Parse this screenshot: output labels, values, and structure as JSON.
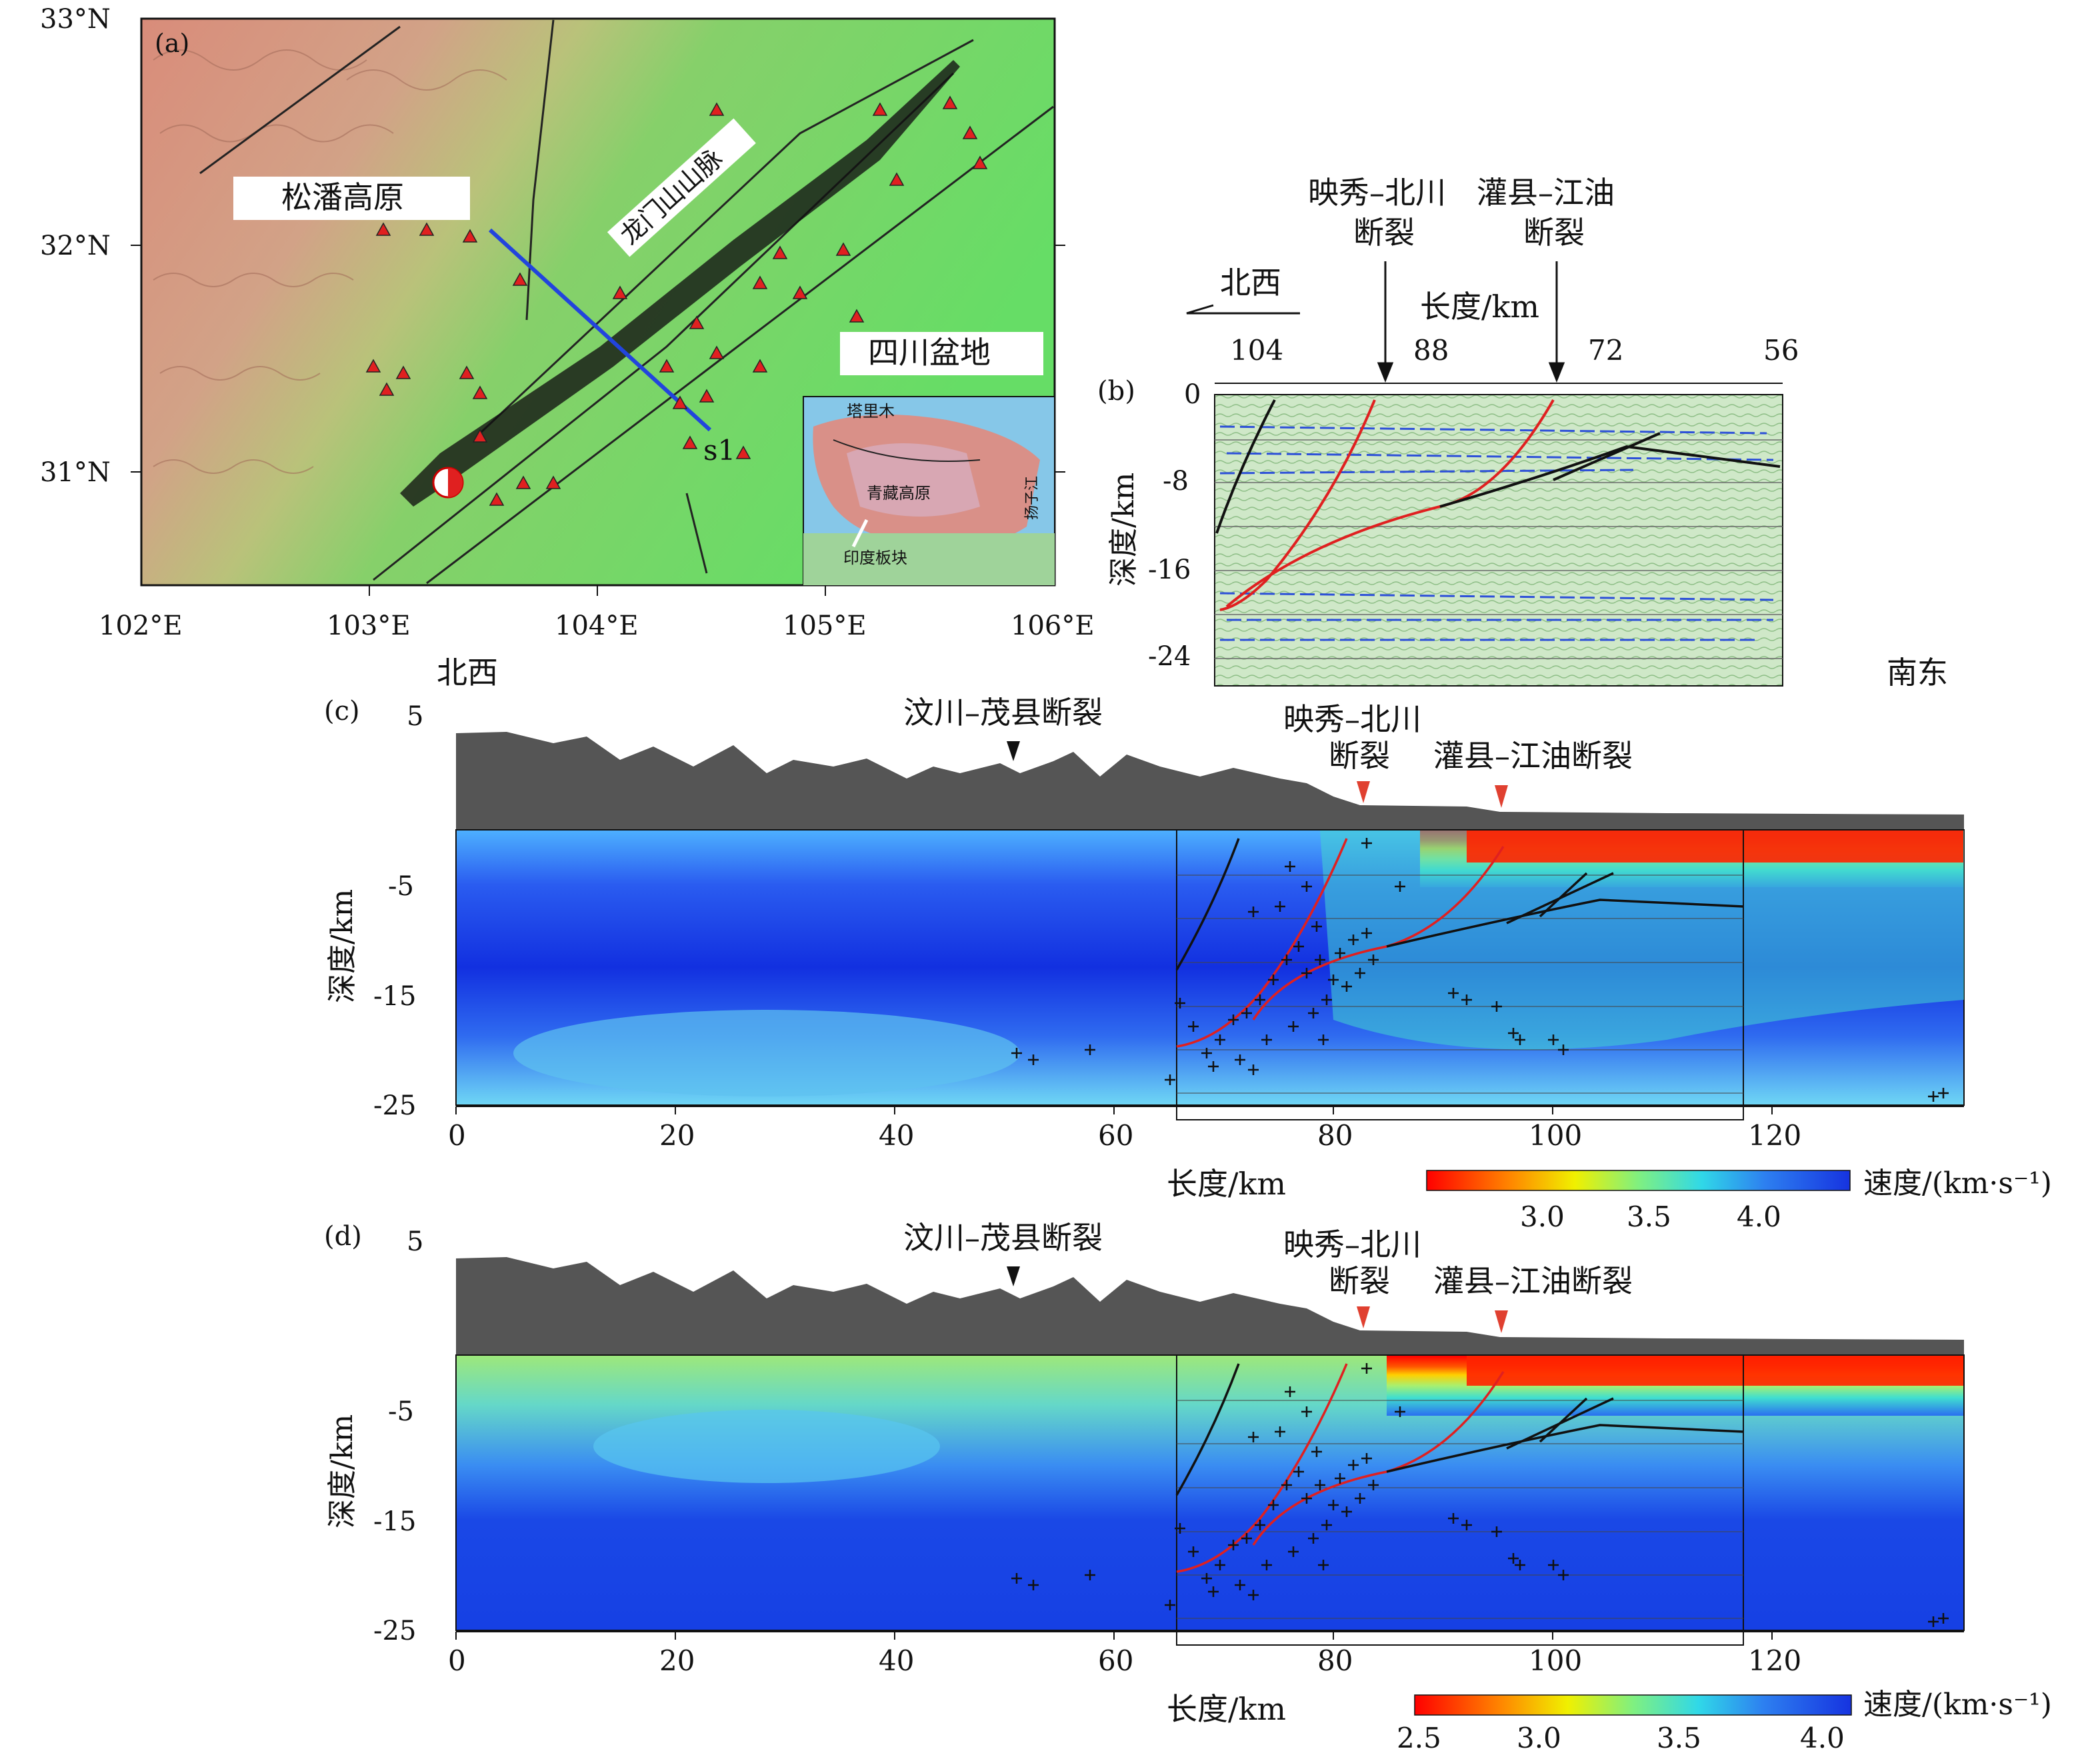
{
  "panel_a": {
    "tag": "(a)",
    "lat_labels": [
      "33°N",
      "32°N",
      "31°N"
    ],
    "lon_labels": [
      "102°E",
      "103°E",
      "104°E",
      "105°E",
      "106°E"
    ],
    "label_songpan": "松潘高原",
    "label_longmen": "龙门山山脉",
    "label_sichuan": "四川盆地",
    "profile_label": "s1",
    "inset": {
      "label_tarim": "塔里木",
      "label_tibet": "青藏高原",
      "label_yangtze": "扬子江",
      "label_india": "印度板块"
    },
    "colors": {
      "profile": "#2244dd",
      "station": "#e02020",
      "fault": "#222222"
    }
  },
  "panel_b": {
    "tag": "(b)",
    "direction_nw": "北西",
    "xlabel": "长度/km",
    "ylabel": "深度/km",
    "fault1": "映秀–北川\n断裂",
    "fault1_line1": "映秀–北川",
    "fault1_line2": "断裂",
    "fault2_line1": "灌县–江油",
    "fault2_line2": "断裂",
    "x_ticks": [
      "104",
      "88",
      "72",
      "56"
    ],
    "y_ticks": [
      "0",
      "-8",
      "-16",
      "-24"
    ]
  },
  "panel_c": {
    "tag": "(c)",
    "direction_nw": "北西",
    "direction_se": "南东",
    "fault_wenchuan": "汶川–茂县断裂",
    "fault_yingxiu_1": "映秀–北川",
    "fault_yingxiu_2": "断裂",
    "fault_guanxian": "灌县–江油断裂",
    "ylabel": "深度/km",
    "xlabel": "长度/km",
    "y_ticks": [
      "5",
      "-5",
      "-15",
      "-25"
    ],
    "x_ticks": [
      "0",
      "20",
      "40",
      "60",
      "80",
      "100",
      "120"
    ],
    "colorbar_label": "速度/(km·s⁻¹)",
    "colorbar_ticks": [
      "3.0",
      "3.5",
      "4.0"
    ]
  },
  "panel_d": {
    "tag": "(d)",
    "fault_wenchuan": "汶川–茂县断裂",
    "fault_yingxiu_1": "映秀–北川",
    "fault_yingxiu_2": "断裂",
    "fault_guanxian": "灌县–江油断裂",
    "ylabel": "深度/km",
    "xlabel": "长度/km",
    "y_ticks": [
      "5",
      "-5",
      "-15",
      "-25"
    ],
    "x_ticks": [
      "0",
      "20",
      "40",
      "60",
      "80",
      "100",
      "120"
    ],
    "colorbar_label": "速度/(km·s⁻¹)",
    "colorbar_ticks": [
      "2.5",
      "3.0",
      "3.5",
      "4.0"
    ]
  }
}
